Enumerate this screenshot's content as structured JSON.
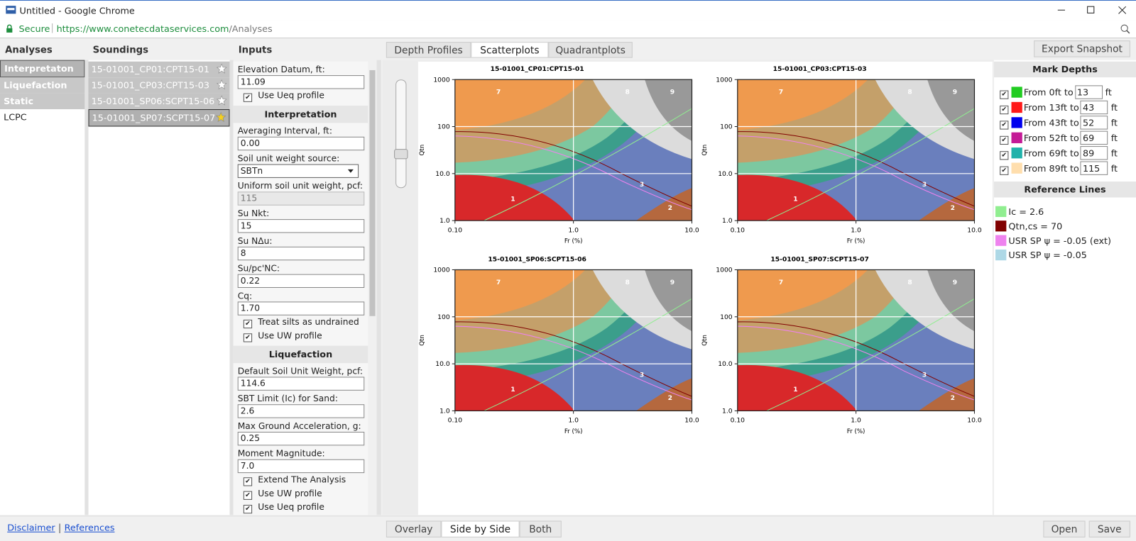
{
  "window": {
    "title": "Untitled - Google Chrome"
  },
  "address_bar": {
    "secure": "Secure",
    "url_host": "https://www.conetecdataservices.com",
    "url_path": "/Analyses"
  },
  "analyses": {
    "header": "Analyses",
    "items": [
      "Interpretaton",
      "Liquefaction",
      "Static Liquefaction",
      "LCPC"
    ]
  },
  "soundings": {
    "header": "Soundings",
    "items": [
      "15-01001_CP01:CPT15-01",
      "15-01001_CP03:CPT15-03",
      "15-01001_SP06:SCPT15-06",
      "15-01001_SP07:SCPT15-07"
    ]
  },
  "inputs": {
    "header": "Inputs",
    "items": [
      {
        "label": "Elevation Datum, ft:",
        "value": "11.09"
      },
      {
        "checkbox": "Use Ueq profile"
      },
      {
        "section": "Interpretation"
      },
      {
        "label": "Averaging Interval, ft:",
        "value": "0.00"
      },
      {
        "label": "Soil unit weight source:",
        "select": "SBTn"
      },
      {
        "label": "Uniform soil unit weight, pcf:",
        "value": "115",
        "disabled": true
      },
      {
        "label": "Su Nkt:",
        "value": "15"
      },
      {
        "label": "Su NΔu:",
        "value": "8"
      },
      {
        "label": "Su/pc'NC:",
        "value": "0.22"
      },
      {
        "label": "Cq:",
        "value": "1.70"
      },
      {
        "checkbox": "Treat silts as undrained"
      },
      {
        "checkbox": "Use UW profile"
      },
      {
        "section": "Liquefaction"
      },
      {
        "label": "Default Soil Unit Weight, pcf:",
        "value": "114.6"
      },
      {
        "label": "SBT Limit (Ic) for Sand:",
        "value": "2.6"
      },
      {
        "label": "Max Ground Acceleration, g:",
        "value": "0.25"
      },
      {
        "label": "Moment Magnitude:",
        "value": "7.0"
      },
      {
        "checkbox": "Extend The Analysis"
      },
      {
        "checkbox": "Use UW profile"
      },
      {
        "checkbox": "Use Ueq profile"
      }
    ]
  },
  "tabs": {
    "items": [
      "Depth Profiles",
      "Scatterplots",
      "Quadrantplots"
    ],
    "active": 1,
    "export": "Export Snapshot"
  },
  "plots": {
    "titles": [
      "15-01001_CP01:CPT15-01",
      "15-01001_CP03:CPT15-03",
      "15-01001_SP06:SCPT15-06",
      "15-01001_SP07:SCPT15-07"
    ],
    "x_label": "Fr (%)",
    "y_label": "Qtn",
    "x_ticks": [
      "0.10",
      "1.0",
      "10.0"
    ],
    "y_ticks": [
      "1000",
      "100",
      "10.0",
      "1.0"
    ],
    "zones": [
      "7",
      "8",
      "9",
      "1",
      "2",
      "3"
    ]
  },
  "mark_depths": {
    "header": "Mark Depths",
    "rows": [
      {
        "label": "From 0ft to",
        "value": "13",
        "unit": "ft",
        "color": "#22cc22"
      },
      {
        "label": "From 13ft to",
        "value": "43",
        "unit": "ft",
        "color": "#ff1a1a"
      },
      {
        "label": "From 43ft to",
        "value": "52",
        "unit": "ft",
        "color": "#0000ee"
      },
      {
        "label": "From 52ft to",
        "value": "69",
        "unit": "ft",
        "color": "#c41a96"
      },
      {
        "label": "From 69ft to",
        "value": "89",
        "unit": "ft",
        "color": "#20b2aa"
      },
      {
        "label": "From 89ft to",
        "value": "115",
        "unit": "ft",
        "color": "#ffdead"
      }
    ]
  },
  "reference_lines": {
    "header": "Reference Lines",
    "items": [
      {
        "label": "Ic = 2.6",
        "color": "#90ee90"
      },
      {
        "label": "Qtn,cs = 70",
        "color": "#800000"
      },
      {
        "label": "USR SP ψ = -0.05 (ext)",
        "color": "#ee82ee"
      },
      {
        "label": "USR SP ψ = -0.05",
        "color": "#add8e6"
      }
    ]
  },
  "footer": {
    "disclaimer": "Disclaimer",
    "references": "References",
    "views": [
      "Overlay",
      "Side by Side",
      "Both"
    ],
    "active_view": 1,
    "open": "Open",
    "save": "Save"
  }
}
